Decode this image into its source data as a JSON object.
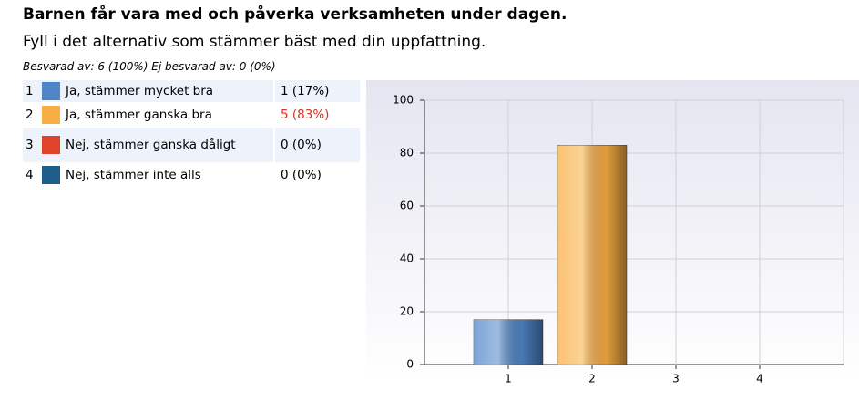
{
  "header": {
    "title": "Barnen får vara med och påverka verksamheten under dagen.",
    "subtitle": "Fyll i det alternativ som stämmer bäst med din uppfattning.",
    "stats": "Besvarad av: 6 (100%) Ej besvarad av: 0 (0%)"
  },
  "table": {
    "rows": [
      [
        "1",
        "Ja, stämmer mycket bra",
        "1 (17%)"
      ],
      [
        "2",
        "Ja, stämmer ganska bra",
        "5 (83%)"
      ],
      [
        "3",
        "Nej, stämmer ganska dåligt",
        "0 (0%)"
      ],
      [
        "4",
        "Nej, stämmer inte alls",
        "0 (0%)"
      ]
    ]
  },
  "chart_data": {
    "type": "bar",
    "categories": [
      "1",
      "2",
      "3",
      "4"
    ],
    "values": [
      17,
      83,
      0,
      0
    ],
    "colors": [
      "#4f86c8",
      "#f9ae43",
      "#e0432b",
      "#1d5f8a"
    ],
    "ylim": [
      0,
      100
    ],
    "yticks": [
      0,
      20,
      40,
      60,
      80,
      100
    ],
    "grid": true
  }
}
